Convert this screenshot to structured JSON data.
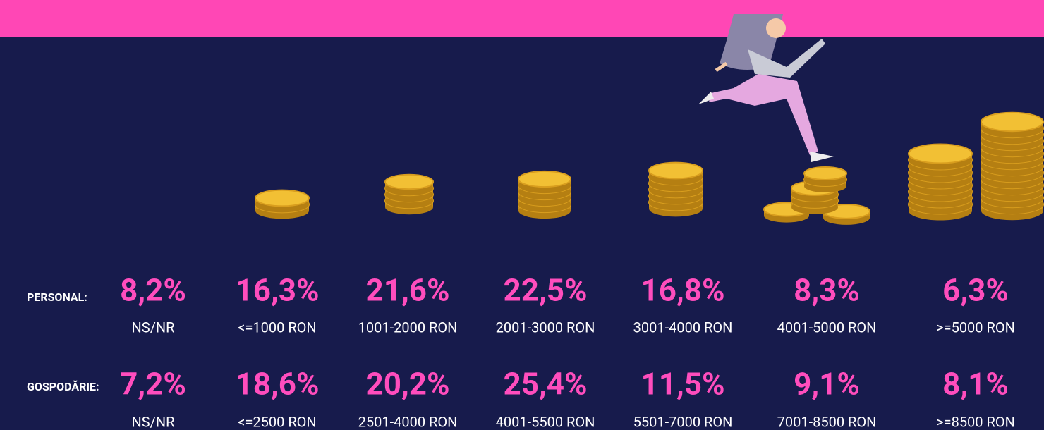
{
  "row_labels": [
    "PERSONAL:",
    "GOSPODĂRIE:"
  ],
  "rows": [
    {
      "values": [
        "8,2%",
        "16,3%",
        "21,6%",
        "22,5%",
        "16,8%",
        "8,3%",
        "6,3%"
      ],
      "categories": [
        "NS/NR",
        "<=1000 RON",
        "1001-2000 RON",
        "2001-3000 RON",
        "3001-4000 RON",
        "4001-5000 RON",
        ">=5000 RON"
      ]
    },
    {
      "values": [
        "7,2%",
        "18,6%",
        "20,2%",
        "25,4%",
        "11,5%",
        "9,1%",
        "8,1%"
      ],
      "categories": [
        "NS/NR",
        "<=2500 RON",
        "2501-4000 RON",
        "4001-5500 RON",
        "5501-7000 RON",
        "7001-8500 RON",
        ">=8500 RON"
      ]
    }
  ]
}
